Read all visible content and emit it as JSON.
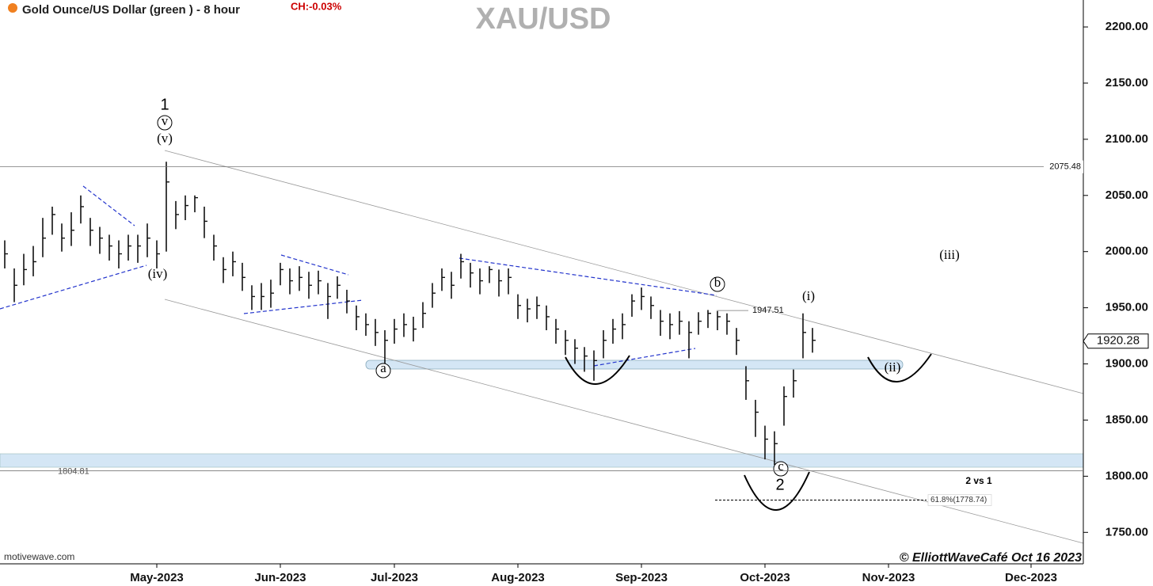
{
  "chart_data": {
    "type": "ohlc",
    "title": "XAU/USD",
    "subtitle": "Gold Ounce/US Dollar (green ) - 8 hour",
    "change": "CH:-0.03%",
    "source": "motivewave.com",
    "credit": "© ElliottWaveCafé Oct 16 2023",
    "color": "#111111",
    "categories": [
      null,
      null,
      null,
      null,
      null,
      null,
      null,
      null,
      null,
      null,
      null,
      null,
      null,
      null,
      null,
      null,
      "May-2023",
      null,
      null,
      null,
      null,
      null,
      null,
      null,
      null,
      null,
      null,
      null,
      null,
      "Jun-2023",
      null,
      null,
      null,
      null,
      null,
      null,
      null,
      null,
      null,
      null,
      null,
      "Jul-2023",
      null,
      null,
      null,
      null,
      null,
      null,
      null,
      null,
      null,
      null,
      null,
      null,
      "Aug-2023",
      null,
      null,
      null,
      null,
      null,
      null,
      null,
      null,
      null,
      null,
      null,
      null,
      "Sep-2023",
      null,
      null,
      null,
      null,
      null,
      null,
      null,
      null,
      null,
      null,
      null,
      null,
      "Oct-2023",
      null,
      null,
      null,
      null,
      null,
      null,
      null,
      null,
      null,
      null,
      null,
      null,
      "Nov-2023",
      null,
      null,
      null,
      null,
      null,
      null,
      null,
      null,
      null,
      null,
      null,
      null,
      null,
      null,
      "Dec-2023",
      null,
      null,
      null,
      null,
      null
    ],
    "high": [
      2010,
      1985,
      1998,
      2005,
      2030,
      2040,
      2025,
      2035,
      2050,
      2030,
      2022,
      2015,
      2010,
      2015,
      2015,
      2025,
      2010,
      2080,
      2045,
      2050,
      2050,
      2040,
      2015,
      1995,
      2000,
      1990,
      1970,
      1972,
      1975,
      1990,
      1985,
      1987,
      1982,
      1983,
      1972,
      1978,
      1966,
      1952,
      1945,
      1940,
      1930,
      1940,
      1945,
      1942,
      1955,
      1972,
      1985,
      1982,
      1998,
      1990,
      1985,
      1987,
      1984,
      1985,
      1962,
      1958,
      1960,
      1952,
      1940,
      1930,
      1922,
      1915,
      1912,
      1930,
      1940,
      1945,
      1962,
      1968,
      1960,
      1948,
      1945,
      1947,
      1938,
      1946,
      1948,
      1947,
      1945,
      1932,
      1898,
      1868,
      1845,
      1840,
      1880,
      1895,
      1945,
      1932,
      null,
      null,
      null,
      null,
      null,
      null,
      null,
      null,
      null,
      null,
      null,
      null,
      null,
      null,
      null,
      null,
      null,
      null,
      null,
      null,
      null,
      null,
      null,
      null,
      null,
      null,
      null,
      null
    ],
    "low": [
      1985,
      1955,
      1970,
      1978,
      1995,
      2015,
      2000,
      2005,
      2025,
      2005,
      1998,
      1992,
      1985,
      1992,
      1990,
      1995,
      1985,
      2000,
      2020,
      2028,
      2035,
      2012,
      1992,
      1972,
      1978,
      1965,
      1948,
      1948,
      1950,
      1970,
      1962,
      1965,
      1958,
      1962,
      1940,
      1958,
      1945,
      1930,
      1925,
      1916,
      1900,
      1918,
      1924,
      1920,
      1932,
      1950,
      1965,
      1958,
      1976,
      1968,
      1962,
      1972,
      1960,
      1962,
      1940,
      1937,
      1940,
      1930,
      1918,
      1908,
      1900,
      1893,
      1885,
      1905,
      1918,
      1922,
      1942,
      1948,
      1940,
      1925,
      1922,
      1926,
      1905,
      1926,
      1932,
      1930,
      1926,
      1908,
      1868,
      1835,
      1815,
      1810,
      1845,
      1870,
      1905,
      1910,
      null,
      null,
      null,
      null,
      null,
      null,
      null,
      null,
      null,
      null,
      null,
      null,
      null,
      null,
      null,
      null,
      null,
      null,
      null,
      null,
      null,
      null,
      null,
      null,
      null,
      null,
      null,
      null
    ],
    "close": [
      1998,
      1970,
      1984,
      1991,
      2012,
      2033,
      2012,
      2019,
      2040,
      2019,
      2012,
      2005,
      1998,
      2005,
      2005,
      2012,
      1998,
      2062,
      2033,
      2041,
      2048,
      2027,
      2005,
      1984,
      1991,
      1977,
      1960,
      1960,
      1963,
      1984,
      1974,
      1977,
      1970,
      1974,
      1960,
      1970,
      1956,
      1942,
      1935,
      1928,
      1921,
      1931,
      1935,
      1931,
      1945,
      1963,
      1977,
      1970,
      1991,
      1981,
      1974,
      1984,
      1974,
      1977,
      1952,
      1949,
      1952,
      1942,
      1931,
      1921,
      1914,
      1907,
      1903,
      1921,
      1931,
      1935,
      1956,
      1960,
      1952,
      1938,
      1935,
      1938,
      1928,
      1938,
      1945,
      1942,
      1938,
      1921,
      1885,
      1857,
      1833,
      1829,
      1871,
      1885,
      1928,
      1921,
      null,
      null,
      null,
      null,
      null,
      null,
      null,
      null,
      null,
      null,
      null,
      null,
      null,
      null,
      null,
      null,
      null,
      null,
      null,
      null,
      null,
      null,
      null,
      null,
      null,
      null,
      null,
      null
    ],
    "last_price": 1920.28,
    "levels": [
      2075.48,
      1947.51,
      1804.81
    ],
    "fib_level": {
      "value": 1778.74,
      "label": "61.8%(1778.74)"
    },
    "ylim": [
      1722,
      2224
    ],
    "yticks": [
      {
        "value": 1750,
        "label": "1750.00"
      },
      {
        "value": 1800,
        "label": "1800.00"
      },
      {
        "value": 1850,
        "label": "1850.00"
      },
      {
        "value": 1900,
        "label": "1900.00"
      },
      {
        "value": 1950,
        "label": "1950.00"
      },
      {
        "value": 2000,
        "label": "2000.00"
      },
      {
        "value": 2050,
        "label": "2050.00"
      },
      {
        "value": 2100,
        "label": "2100.00"
      },
      {
        "value": 2150,
        "label": "2150.00"
      },
      {
        "value": 2200,
        "label": "2200.00"
      }
    ],
    "annotations": [
      "1",
      "v",
      "(v)",
      "(iv)",
      "a",
      "b",
      "(i)",
      "(ii)",
      "(iii)",
      "c",
      "2",
      "2 vs 1"
    ]
  }
}
